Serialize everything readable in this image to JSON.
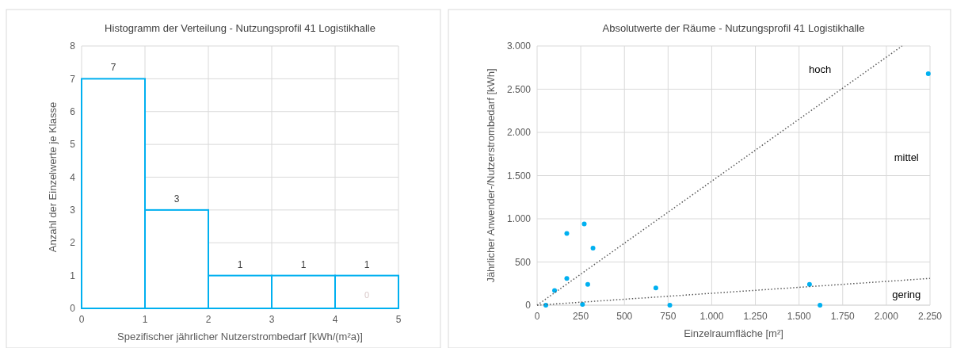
{
  "chart_data": [
    {
      "type": "histogram",
      "title": "Histogramm der Verteilung - Nutzungsprofil 41 Logistikhalle",
      "xlabel": "Spezifischer jährlicher Nutzerstrombedarf [kWh/(m²a)]",
      "ylabel": "Anzahl der Einzelwerte je Klasse",
      "bins": [
        0,
        1,
        2,
        3,
        4,
        5
      ],
      "values": [
        7,
        3,
        1,
        1,
        1
      ],
      "color": "#00b0f0",
      "xlim": [
        0,
        5
      ],
      "xticks": [
        0,
        1,
        2,
        3,
        4,
        5
      ],
      "ylim": [
        0,
        8
      ],
      "yticks": [
        0,
        1,
        2,
        3,
        4,
        5,
        6,
        7,
        8
      ],
      "grid": true,
      "data_labels": true,
      "annotations": [
        "0"
      ]
    },
    {
      "type": "scatter",
      "title": "Absolutwerte der Räume - Nutzungsprofil 41 Logistikhalle",
      "xlabel": "Einzelraumfläche [m²]",
      "ylabel": "Jährlicher Anwender-/Nutzerstrombedarf [kWh]",
      "xlim": [
        0,
        2250
      ],
      "xticks": [
        0,
        250,
        500,
        750,
        {
          "value": 1000,
          "label": "1.000"
        },
        {
          "value": 1250,
          "label": "1.250"
        },
        {
          "value": 1500,
          "label": "1.500"
        },
        {
          "value": 1750,
          "label": "1.750"
        },
        {
          "value": 2000,
          "label": "2.000"
        },
        {
          "value": 2250,
          "label": "2.250"
        }
      ],
      "ylim": [
        0,
        3000
      ],
      "yticks": [
        0,
        500,
        {
          "value": 1000,
          "label": "1.000"
        },
        {
          "value": 1500,
          "label": "1.500"
        },
        {
          "value": 2000,
          "label": "2.000"
        },
        {
          "value": 2500,
          "label": "2.500"
        },
        {
          "value": 3000,
          "label": "3.000"
        }
      ],
      "grid": true,
      "series": [
        {
          "type": "scatter",
          "marker": "circle",
          "color": "#00b0f0",
          "x": [
            50,
            100,
            170,
            170,
            270,
            260,
            320,
            290,
            680,
            760,
            1560,
            1620,
            2240
          ],
          "values": [
            0,
            170,
            830,
            310,
            940,
            10,
            660,
            240,
            200,
            0,
            240,
            0,
            2680
          ]
        },
        {
          "type": "line",
          "color": "#595959",
          "line_style": "dotted",
          "x": [
            0,
            2090
          ],
          "values": [
            0,
            3000
          ]
        },
        {
          "type": "line",
          "color": "#595959",
          "line_style": "dotted",
          "x": [
            0,
            2250
          ],
          "values": [
            0,
            310
          ]
        }
      ],
      "annotations": [
        "hoch",
        "mittel",
        "gering"
      ]
    }
  ]
}
